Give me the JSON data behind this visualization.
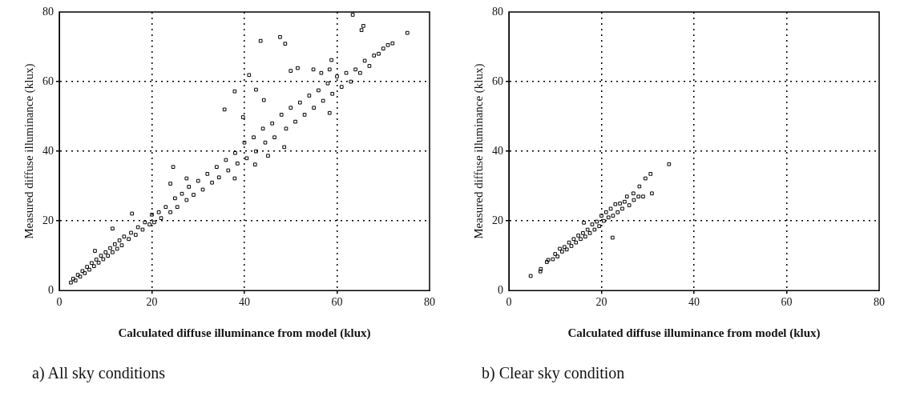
{
  "chart_data": [
    {
      "type": "scatter",
      "xlabel": "Calculated diffuse illuminance from model (klux)",
      "ylabel": "Measured diffuse illuminance (klux)",
      "annotations": [
        "a) All sky conditions"
      ],
      "color": "#000000",
      "marker": "square",
      "grid": true,
      "xlim": [
        0,
        80
      ],
      "ylim": [
        0,
        80
      ],
      "xticks": [
        0,
        20,
        40,
        60,
        80
      ],
      "yticks": [
        0,
        20,
        40,
        60,
        80
      ],
      "x": [
        2.5,
        3,
        3.5,
        4,
        4.5,
        5,
        5.5,
        6,
        6.5,
        7,
        7.5,
        8,
        8.5,
        9,
        9.5,
        10,
        10.5,
        11,
        11.5,
        12,
        12.5,
        13,
        13.5,
        14,
        15,
        15.5,
        16.5,
        17,
        18,
        18.5,
        19.5,
        20,
        20.5,
        21.5,
        22,
        23,
        24,
        25,
        25.5,
        26.5,
        27.5,
        28,
        29,
        30,
        31,
        32,
        33,
        34,
        34.5,
        36,
        36.5,
        38,
        38.5,
        40,
        40.5,
        42,
        42.5,
        44,
        44.5,
        46,
        46.5,
        48,
        49,
        50,
        51,
        52,
        53,
        54,
        55,
        56,
        57,
        58,
        59,
        60,
        61,
        62,
        63,
        64,
        65,
        66,
        67,
        68,
        69,
        70,
        71,
        72,
        63.4,
        65.3,
        65.7,
        75.2,
        43.5,
        47.7,
        48.8,
        41,
        37.9,
        42.5,
        44.2,
        35.7,
        39.7,
        50,
        51.5,
        54.9,
        56.6,
        58.4,
        58.8,
        58.4,
        48.6,
        37.9,
        24.6,
        24,
        27.5,
        15.7,
        11.5,
        7.7,
        42.3,
        45.1
      ],
      "values": [
        2.3,
        3.4,
        2.9,
        4.5,
        4.0,
        5.6,
        5.0,
        6.8,
        6.0,
        7.9,
        7.0,
        8.9,
        8.0,
        10.0,
        9.0,
        11.0,
        10.0,
        12.2,
        11.0,
        13.3,
        12.0,
        14.4,
        13.0,
        15.5,
        14.8,
        16.6,
        16.0,
        18.2,
        17.5,
        19.6,
        19.0,
        21.8,
        19.6,
        22.5,
        20.8,
        24.0,
        22.5,
        26.5,
        24.0,
        27.8,
        26.0,
        29.8,
        27.5,
        31.5,
        29.0,
        33.5,
        31.0,
        35.5,
        32.5,
        37.5,
        34.5,
        39.5,
        36.5,
        42.5,
        38.0,
        44.0,
        40.0,
        46.5,
        42.5,
        48.0,
        44.0,
        50.5,
        46.5,
        52.5,
        48.5,
        54.0,
        50.5,
        56.0,
        52.5,
        57.5,
        54.5,
        59.5,
        56.5,
        61.5,
        58.5,
        62.5,
        60.0,
        63.5,
        62.5,
        66.0,
        64.5,
        67.5,
        68.0,
        69.5,
        70.5,
        71.0,
        79.2,
        74.8,
        76,
        74,
        71.7,
        72.8,
        70.9,
        61.9,
        57.2,
        57.7,
        54.7,
        52,
        49.8,
        63.1,
        63.9,
        63.5,
        62.5,
        63.5,
        66.2,
        51,
        41.2,
        32.2,
        35.5,
        30.7,
        32.2,
        22.1,
        17.8,
        11.4,
        36.2,
        38.7
      ]
    },
    {
      "type": "scatter",
      "xlabel": "Calculated diffuse illuminance from model (klux)",
      "ylabel": "Measured diffuse illuminance (klux)",
      "annotations": [
        "b) Clear sky condition"
      ],
      "color": "#000000",
      "marker": "square",
      "grid": true,
      "xlim": [
        0,
        80
      ],
      "ylim": [
        0,
        80
      ],
      "xticks": [
        0,
        20,
        40,
        60,
        80
      ],
      "yticks": [
        0,
        20,
        40,
        60,
        80
      ],
      "x": [
        4.7,
        6.8,
        6.9,
        8.2,
        8.5,
        9.5,
        10,
        10.5,
        11,
        11.5,
        12,
        12.5,
        13,
        13.5,
        14,
        14.5,
        15,
        15.5,
        16,
        16.2,
        16.5,
        17,
        17.5,
        18,
        18.5,
        19,
        19.5,
        20,
        20.5,
        21,
        21.5,
        22,
        22.4,
        22.5,
        23,
        23.5,
        24,
        24.5,
        25,
        25.5,
        26,
        26.9,
        27,
        28,
        28.2,
        29,
        29.5,
        30.6,
        30.9,
        34.6
      ],
      "values": [
        4.2,
        5.5,
        6.2,
        8.2,
        8.8,
        9.0,
        10.5,
        9.8,
        12.0,
        11.2,
        12.5,
        11.8,
        13.8,
        12.8,
        14.8,
        13.8,
        15.8,
        14.8,
        16.5,
        19.5,
        15.5,
        17.5,
        16.5,
        19.0,
        17.5,
        19.8,
        18.5,
        21.5,
        20.0,
        22.5,
        21.0,
        23.5,
        15.2,
        21.5,
        24.8,
        22.5,
        25.0,
        23.5,
        25.5,
        27.0,
        24.5,
        27.9,
        26.0,
        27.0,
        29.9,
        27.0,
        32.2,
        33.5,
        27.9,
        36.3
      ]
    }
  ]
}
